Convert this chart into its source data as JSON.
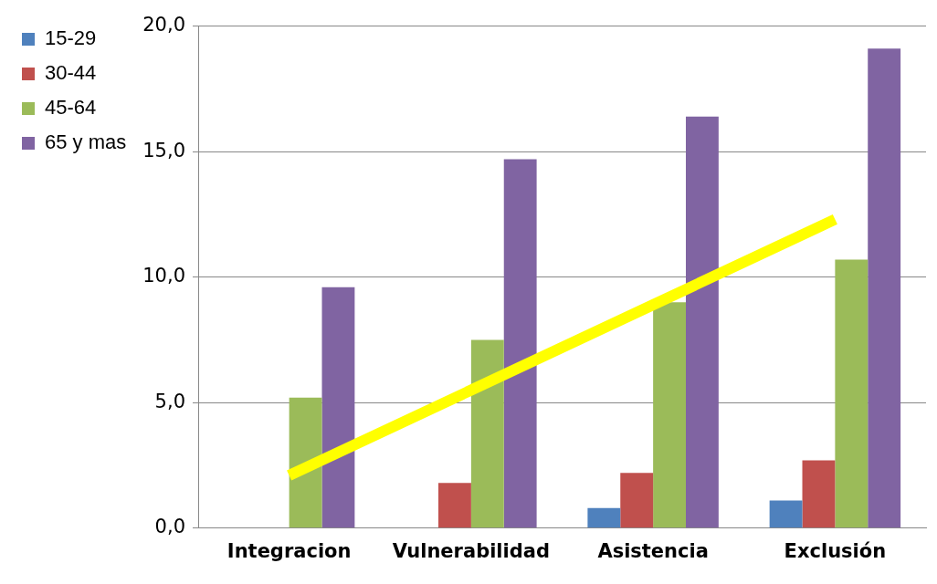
{
  "chart_data": {
    "type": "bar",
    "categories": [
      "Integracion",
      "Vulnerabilidad",
      "Asistencia",
      "Exclusión"
    ],
    "series": [
      {
        "name": "15-29",
        "color": "#4f81bd",
        "values": [
          null,
          null,
          0.8,
          1.1
        ]
      },
      {
        "name": "30-44",
        "color": "#c0504d",
        "values": [
          null,
          1.8,
          2.2,
          2.7
        ]
      },
      {
        "name": "45-64",
        "color": "#9bbb59",
        "values": [
          5.2,
          7.5,
          9.0,
          10.7
        ]
      },
      {
        "name": "65 y mas",
        "color": "#8064a2",
        "values": [
          9.6,
          14.7,
          16.4,
          19.1
        ]
      },
      {
        "type": "line",
        "color": "#ffff00",
        "values": [
          2.1,
          5.5,
          8.9,
          12.3
        ]
      }
    ],
    "ylim": [
      0,
      20
    ],
    "yticks": [
      {
        "value": 0,
        "label": "0,0"
      },
      {
        "value": 5,
        "label": "5,0"
      },
      {
        "value": 10,
        "label": "10,0"
      },
      {
        "value": 15,
        "label": "15,0"
      },
      {
        "value": 20,
        "label": "20,0"
      }
    ],
    "grid": "y",
    "legend": "top left"
  }
}
